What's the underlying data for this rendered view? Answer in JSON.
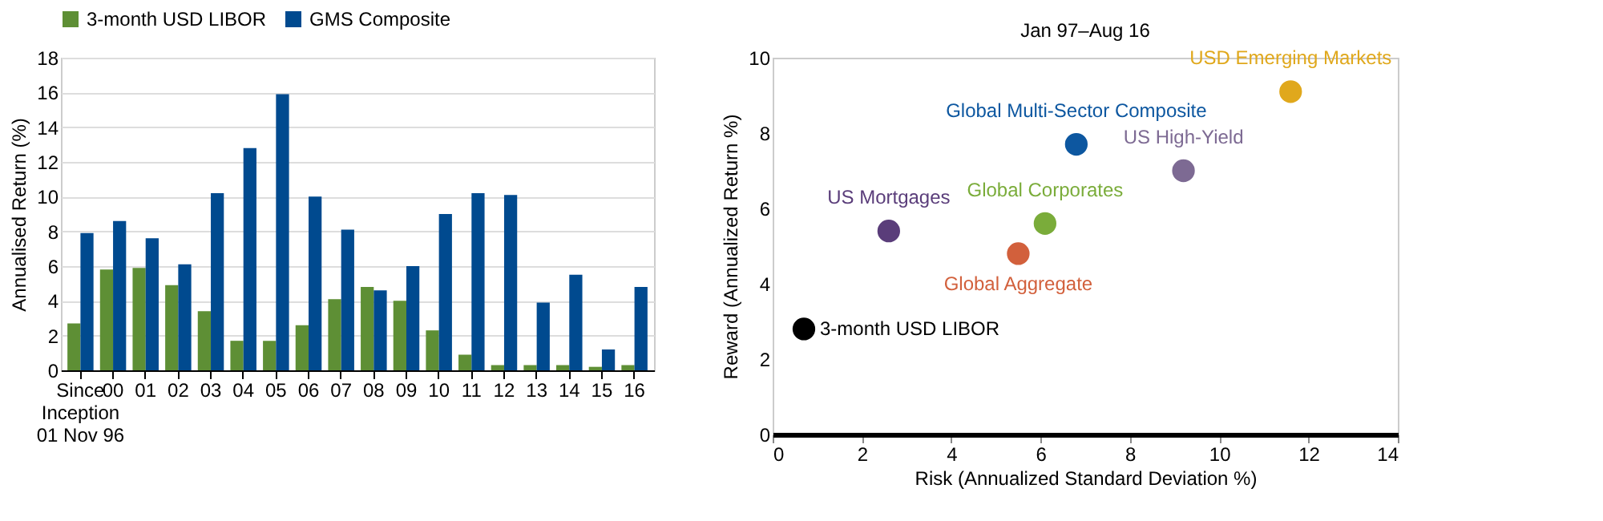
{
  "chart_data": [
    {
      "type": "bar",
      "ylabel": "Annualised Return (%)",
      "categories": [
        "Since\nInception\n01 Nov 96",
        "00",
        "01",
        "02",
        "03",
        "04",
        "05",
        "06",
        "07",
        "08",
        "09",
        "10",
        "11",
        "12",
        "13",
        "14",
        "15",
        "16"
      ],
      "series": [
        {
          "name": "3-month USD LIBOR",
          "color": "#5e8f35",
          "values": [
            2.7,
            5.8,
            5.9,
            4.9,
            3.4,
            1.7,
            1.7,
            2.6,
            4.1,
            4.8,
            4.0,
            2.3,
            0.9,
            0.3,
            0.3,
            0.3,
            0.2,
            0.3
          ]
        },
        {
          "name": "GMS Composite",
          "color": "#004a8f",
          "values": [
            7.9,
            8.6,
            7.6,
            6.1,
            10.2,
            12.8,
            15.9,
            10.0,
            8.1,
            4.6,
            6.0,
            9.0,
            10.2,
            10.1,
            3.9,
            5.5,
            1.2,
            4.8
          ]
        }
      ],
      "ylim": [
        0,
        18
      ],
      "yticks": [
        0,
        2,
        4,
        6,
        8,
        10,
        12,
        14,
        16,
        18
      ],
      "grid": "y",
      "legend": "top"
    },
    {
      "type": "scatter",
      "title": "Jan 97–Aug 16",
      "xlabel": "Risk (Annualized Standard Deviation %)",
      "ylabel": "Reward (Annualized Return %)",
      "series": [
        {
          "name": "3-month USD LIBOR",
          "color": "#000000",
          "x": [
            0.7
          ],
          "values": [
            2.8
          ]
        },
        {
          "name": "US Mortgages",
          "color": "#5a3d7a",
          "x": [
            2.6
          ],
          "values": [
            5.4
          ]
        },
        {
          "name": "Global Aggregate",
          "color": "#d2603c",
          "x": [
            5.5
          ],
          "values": [
            4.8
          ]
        },
        {
          "name": "Global Corporates",
          "color": "#7aac3a",
          "x": [
            6.1
          ],
          "values": [
            5.6
          ]
        },
        {
          "name": "Global Multi-Sector Composite",
          "color": "#0d57a0",
          "x": [
            6.8
          ],
          "values": [
            7.7
          ]
        },
        {
          "name": "US High-Yield",
          "color": "#7d6a93",
          "x": [
            9.2
          ],
          "values": [
            7.0
          ]
        },
        {
          "name": "USD Emerging Markets",
          "color": "#e0a81c",
          "x": [
            11.6
          ],
          "values": [
            9.1
          ]
        }
      ],
      "xlim": [
        0,
        14
      ],
      "xticks": [
        0,
        2,
        4,
        6,
        8,
        10,
        12,
        14
      ],
      "ylim": [
        0,
        10
      ],
      "yticks": [
        0,
        2,
        4,
        6,
        8,
        10
      ],
      "grid": false,
      "legend": false,
      "marker": "circle"
    }
  ]
}
